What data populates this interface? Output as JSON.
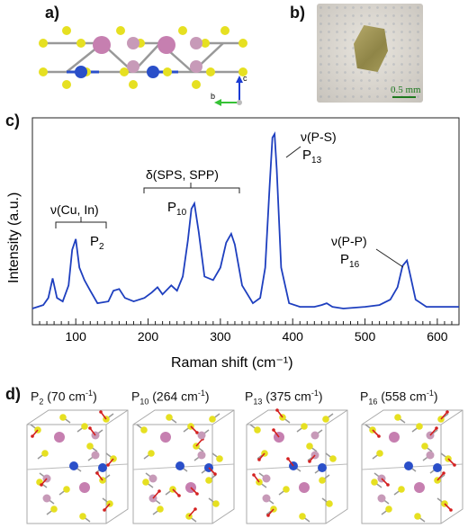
{
  "panels": {
    "a": "a)",
    "b": "b)",
    "c": "c)",
    "d": "d)"
  },
  "axis_labels_a": {
    "c": "c",
    "b": "b"
  },
  "photo": {
    "scale_text": "0.5 mm"
  },
  "chart_data": {
    "type": "line",
    "xlabel": "Raman shift (cm⁻¹)",
    "ylabel": "Intensity (a.u.)",
    "xlim": [
      40,
      630
    ],
    "x_ticks": [
      100,
      200,
      300,
      400,
      500,
      600
    ],
    "series": [
      {
        "x": [
          40,
          55,
          62,
          68,
          74,
          82,
          90,
          95,
          100,
          105,
          112,
          120,
          130,
          145,
          152,
          160,
          168,
          180,
          195,
          205,
          213,
          220,
          232,
          240,
          248,
          255,
          260,
          264,
          270,
          278,
          290,
          300,
          308,
          315,
          320,
          330,
          345,
          355,
          362,
          368,
          372,
          375,
          378,
          384,
          395,
          410,
          430,
          440,
          447,
          455,
          470,
          500,
          520,
          535,
          545,
          552,
          558,
          563,
          570,
          585,
          600,
          615,
          630
        ],
        "values": [
          0.02,
          0.04,
          0.08,
          0.19,
          0.08,
          0.06,
          0.15,
          0.35,
          0.41,
          0.25,
          0.18,
          0.12,
          0.05,
          0.06,
          0.12,
          0.13,
          0.08,
          0.06,
          0.08,
          0.11,
          0.14,
          0.1,
          0.15,
          0.12,
          0.2,
          0.4,
          0.58,
          0.61,
          0.45,
          0.2,
          0.18,
          0.25,
          0.39,
          0.44,
          0.38,
          0.15,
          0.05,
          0.08,
          0.25,
          0.7,
          0.98,
          1.0,
          0.8,
          0.25,
          0.05,
          0.03,
          0.03,
          0.04,
          0.05,
          0.03,
          0.02,
          0.03,
          0.04,
          0.07,
          0.14,
          0.26,
          0.29,
          0.2,
          0.07,
          0.03,
          0.03,
          0.03,
          0.03
        ]
      }
    ],
    "annotations": {
      "cu_in": "ν(Cu, In)",
      "p2": "P",
      "p2_sub": "2",
      "sps": "δ(SPS, SPP)",
      "p10": "P",
      "p10_sub": "10",
      "ps": "ν(P-S)",
      "p13": "P",
      "p13_sub": "13",
      "pp": "ν(P-P)",
      "p16": "P",
      "p16_sub": "16"
    },
    "line_color": "#1e3fbf"
  },
  "modes": [
    {
      "name": "P",
      "sub": "2",
      "freq": " (70 cm",
      "exp": "-1",
      "close": ")"
    },
    {
      "name": "P",
      "sub": "10",
      "freq": " (264 cm",
      "exp": "-1",
      "close": ")"
    },
    {
      "name": "P",
      "sub": "13",
      "freq": " (375 cm",
      "exp": "-1",
      "close": ")"
    },
    {
      "name": "P",
      "sub": "16",
      "freq": " (558 cm",
      "exp": "-1",
      "close": ")"
    }
  ],
  "colors": {
    "sulfur": "#e6e021",
    "phosphorus": "#c79ab8",
    "indium": "#c67fb0",
    "copper": "#2a4fc9",
    "arrow": "#d42020"
  }
}
